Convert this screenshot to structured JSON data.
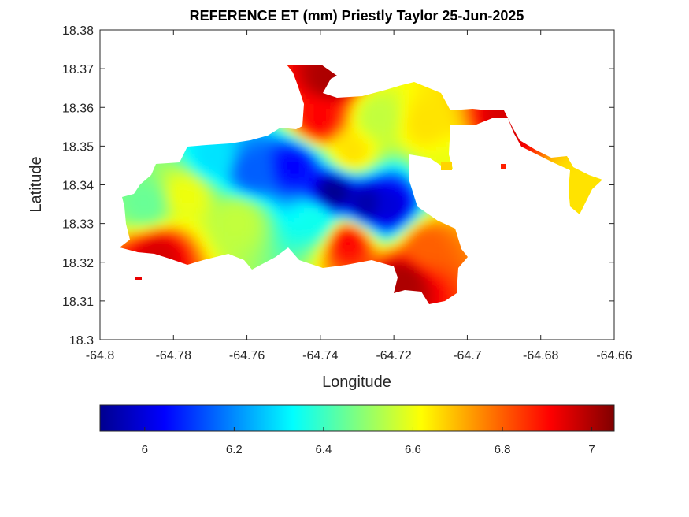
{
  "chart_data": {
    "type": "heatmap",
    "title": "REFERENCE ET (mm) Priestly Taylor 25-Jun-2025",
    "xlabel": "Longitude",
    "ylabel": "Latitude",
    "xlim": [
      -64.8,
      -64.66
    ],
    "ylim": [
      18.3,
      18.38
    ],
    "x_ticks": [
      -64.8,
      -64.78,
      -64.76,
      -64.74,
      -64.72,
      -64.7,
      -64.68,
      -64.66
    ],
    "x_tick_labels": [
      "-64.8",
      "-64.78",
      "-64.76",
      "-64.74",
      "-64.72",
      "-64.7",
      "-64.68",
      "-64.66"
    ],
    "y_ticks": [
      18.3,
      18.31,
      18.32,
      18.33,
      18.34,
      18.35,
      18.36,
      18.37,
      18.38
    ],
    "y_tick_labels": [
      "18.3",
      "18.31",
      "18.32",
      "18.33",
      "18.34",
      "18.35",
      "18.36",
      "18.37",
      "18.38"
    ],
    "colormap": "jet",
    "colorbar": {
      "location": "bottom",
      "range": [
        5.9,
        7.05
      ],
      "ticks": [
        6,
        6.2,
        6.4,
        6.6,
        6.8,
        7
      ],
      "tick_labels": [
        "6",
        "6.2",
        "6.4",
        "6.6",
        "6.8",
        "7"
      ]
    },
    "grid": false,
    "field_units": "mm",
    "field_samples": [
      {
        "lon": -64.737,
        "lat": 18.3385,
        "et": 5.92
      },
      {
        "lon": -64.728,
        "lat": 18.3355,
        "et": 5.95
      },
      {
        "lon": -64.722,
        "lat": 18.335,
        "et": 6.0
      },
      {
        "lon": -64.748,
        "lat": 18.3455,
        "et": 6.05
      },
      {
        "lon": -64.759,
        "lat": 18.344,
        "et": 6.15
      },
      {
        "lon": -64.77,
        "lat": 18.3475,
        "et": 6.3
      },
      {
        "lon": -64.788,
        "lat": 18.3355,
        "et": 6.45
      },
      {
        "lon": -64.777,
        "lat": 18.338,
        "et": 6.6
      },
      {
        "lon": -64.763,
        "lat": 18.3315,
        "et": 6.55
      },
      {
        "lon": -64.742,
        "lat": 18.3315,
        "et": 6.35
      },
      {
        "lon": -64.732,
        "lat": 18.349,
        "et": 6.65
      },
      {
        "lon": -64.725,
        "lat": 18.358,
        "et": 6.55
      },
      {
        "lon": -64.712,
        "lat": 18.3565,
        "et": 6.65
      },
      {
        "lon": -64.741,
        "lat": 18.3575,
        "et": 6.9
      },
      {
        "lon": -64.738,
        "lat": 18.368,
        "et": 7.0
      },
      {
        "lon": -64.733,
        "lat": 18.326,
        "et": 6.9
      },
      {
        "lon": -64.718,
        "lat": 18.316,
        "et": 7.0
      },
      {
        "lon": -64.712,
        "lat": 18.3245,
        "et": 6.8
      },
      {
        "lon": -64.785,
        "lat": 18.3225,
        "et": 6.95
      },
      {
        "lon": -64.69,
        "lat": 18.3575,
        "et": 6.95
      },
      {
        "lon": -64.67,
        "lat": 18.339,
        "et": 6.65
      },
      {
        "lon": -64.705,
        "lat": 18.3455,
        "et": 6.6
      }
    ]
  }
}
